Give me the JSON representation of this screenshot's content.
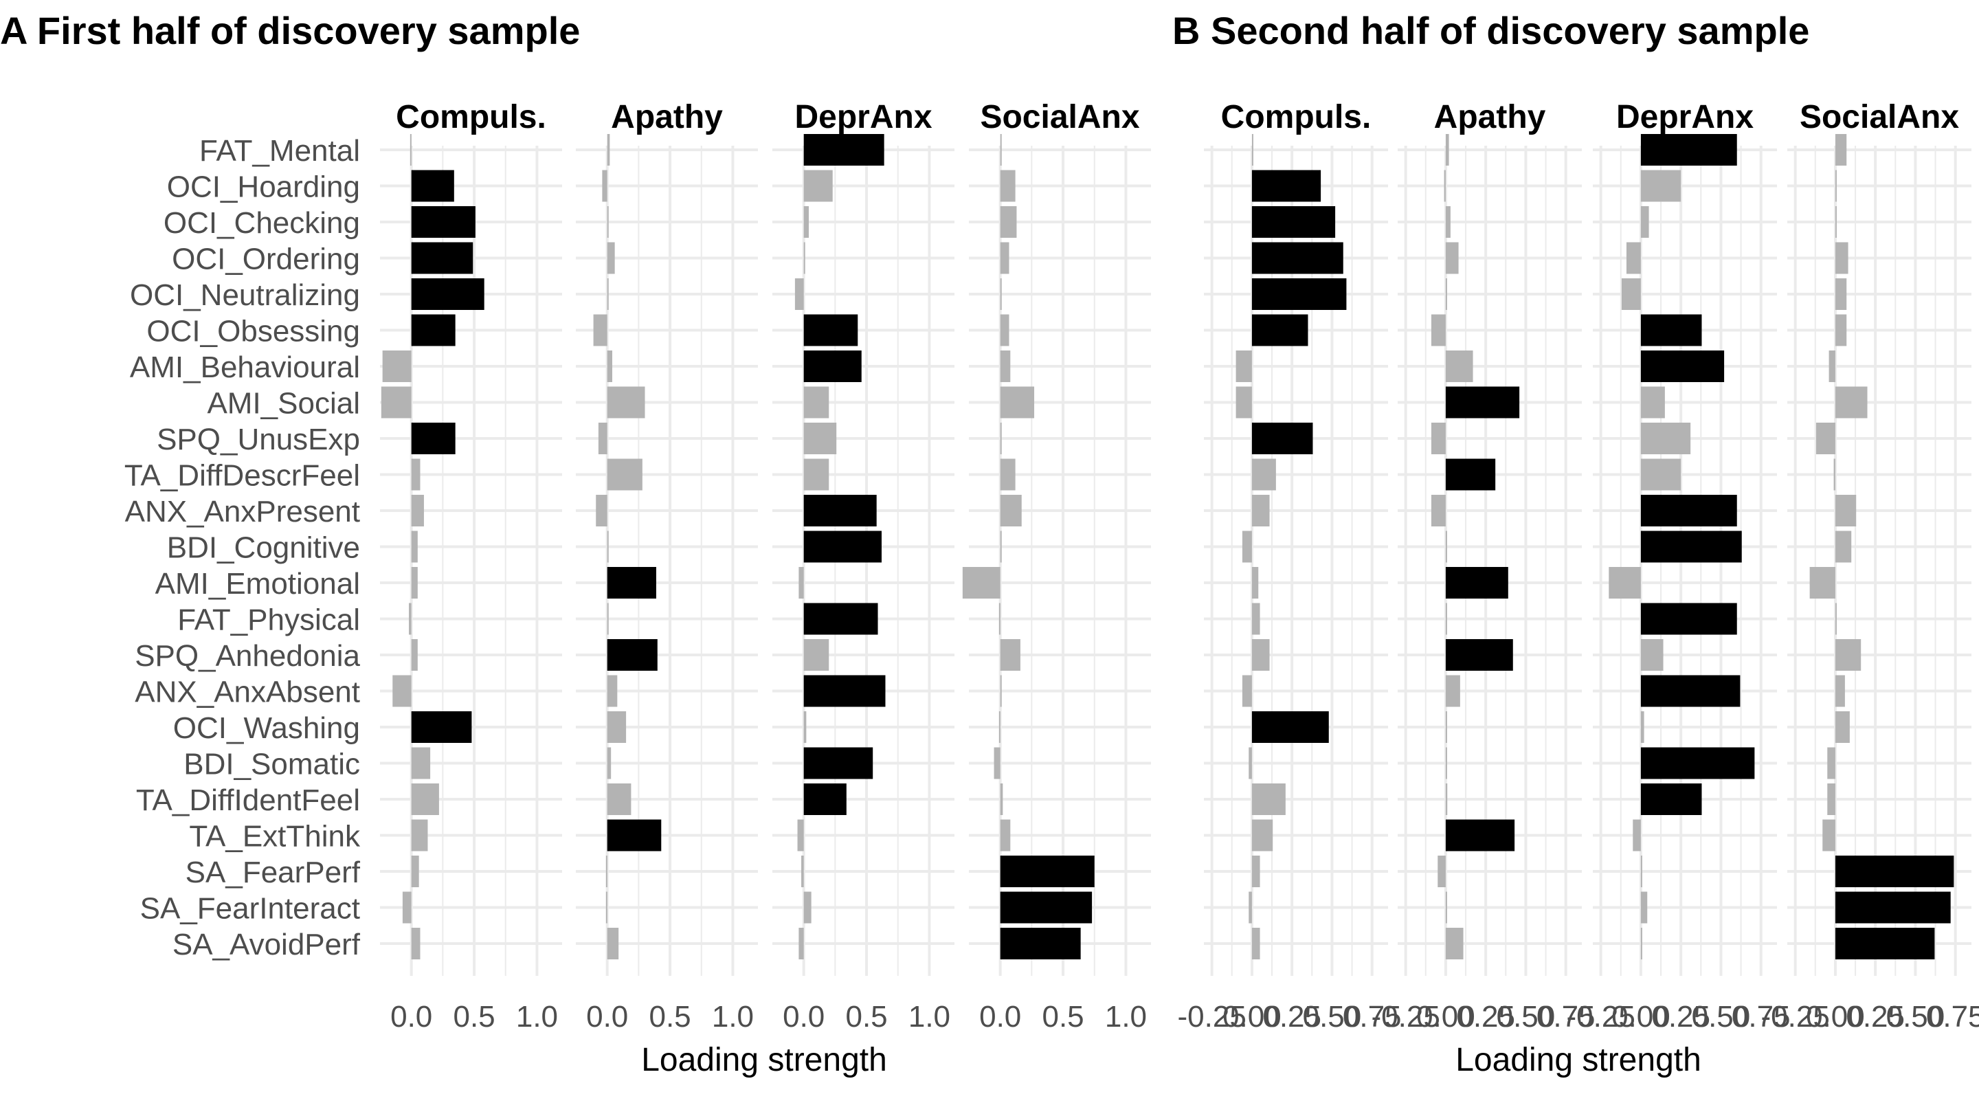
{
  "colors": {
    "strong": "#000000",
    "weak": "#b3b3b3",
    "grid": "#ebebeb",
    "text": "#4d4d4d"
  },
  "chart_data": {
    "type": "bar",
    "orientation": "horizontal",
    "grid": true,
    "threshold_note": "black bars = strong loadings, grey bars = weak loadings",
    "items": [
      "FAT_Mental",
      "OCI_Hoarding",
      "OCI_Checking",
      "OCI_Ordering",
      "OCI_Neutralizing",
      "OCI_Obsessing",
      "AMI_Behavioural",
      "AMI_Social",
      "SPQ_UnusExp",
      "TA_DiffDescrFeel",
      "ANX_AnxPresent",
      "BDI_Cognitive",
      "AMI_Emotional",
      "FAT_Physical",
      "SPQ_Anhedonia",
      "ANX_AnxAbsent",
      "OCI_Washing",
      "BDI_Somatic",
      "TA_DiffIdentFeel",
      "TA_ExtThink",
      "SA_FearPerf",
      "SA_FearInteract",
      "SA_AvoidPerf"
    ],
    "panels": [
      {
        "title": "A First half of discovery sample",
        "xlabel": "Loading strength",
        "facets": [
          {
            "name": "Compuls.",
            "xlim": [
              -0.25,
              1.2
            ],
            "ticks": [
              "0.0",
              "0.5",
              "1.0"
            ],
            "tick_values": [
              0,
              0.5,
              1.0
            ],
            "values": [
              -0.01,
              0.34,
              0.51,
              0.49,
              0.58,
              0.35,
              -0.23,
              -0.24,
              0.35,
              0.07,
              0.1,
              0.05,
              0.05,
              -0.02,
              0.05,
              -0.15,
              0.48,
              0.15,
              0.22,
              0.13,
              0.06,
              -0.07,
              0.07
            ],
            "strong": [
              false,
              true,
              true,
              true,
              true,
              true,
              false,
              false,
              true,
              false,
              false,
              false,
              false,
              false,
              false,
              false,
              true,
              false,
              false,
              false,
              false,
              false,
              false
            ]
          },
          {
            "name": "Apathy",
            "xlim": [
              -0.25,
              1.2
            ],
            "ticks": [
              "0.0",
              "0.5",
              "1.0"
            ],
            "tick_values": [
              0,
              0.5,
              1.0
            ],
            "values": [
              0.02,
              -0.04,
              0.0,
              0.06,
              0.0,
              -0.11,
              0.04,
              0.3,
              -0.07,
              0.28,
              -0.09,
              0.0,
              0.39,
              0.0,
              0.4,
              0.08,
              0.15,
              0.03,
              0.19,
              0.43,
              -0.01,
              -0.01,
              0.09
            ],
            "strong": [
              false,
              false,
              false,
              false,
              false,
              false,
              false,
              false,
              false,
              false,
              false,
              false,
              true,
              false,
              true,
              false,
              false,
              false,
              false,
              true,
              false,
              false,
              false
            ]
          },
          {
            "name": "DeprAnx",
            "xlim": [
              -0.25,
              1.2
            ],
            "ticks": [
              "0.0",
              "0.5",
              "1.0"
            ],
            "tick_values": [
              0,
              0.5,
              1.0
            ],
            "values": [
              0.64,
              0.23,
              0.04,
              0.0,
              -0.07,
              0.43,
              0.46,
              0.2,
              0.26,
              0.2,
              0.58,
              0.62,
              -0.04,
              0.59,
              0.2,
              0.65,
              0.02,
              0.55,
              0.34,
              -0.05,
              -0.02,
              0.06,
              -0.04
            ],
            "strong": [
              true,
              false,
              false,
              false,
              false,
              true,
              true,
              false,
              false,
              false,
              true,
              true,
              false,
              true,
              false,
              true,
              false,
              true,
              true,
              false,
              false,
              false,
              false
            ]
          },
          {
            "name": "SocialAnx",
            "xlim": [
              -0.25,
              1.2
            ],
            "ticks": [
              "0.0",
              "0.5",
              "1.0"
            ],
            "tick_values": [
              0,
              0.5,
              1.0
            ],
            "values": [
              0.0,
              0.12,
              0.13,
              0.07,
              0.0,
              0.07,
              0.08,
              0.27,
              0.0,
              0.12,
              0.17,
              0.01,
              -0.3,
              -0.01,
              0.16,
              0.0,
              -0.01,
              -0.05,
              0.02,
              0.08,
              0.75,
              0.73,
              0.64
            ],
            "strong": [
              false,
              false,
              false,
              false,
              false,
              false,
              false,
              false,
              false,
              false,
              false,
              false,
              false,
              false,
              false,
              false,
              false,
              false,
              false,
              false,
              true,
              true,
              true
            ]
          }
        ]
      },
      {
        "title": "B Second half of discovery sample",
        "xlabel": "Loading strength",
        "facets": [
          {
            "name": "Compuls.",
            "xlim": [
              -0.3,
              0.85
            ],
            "ticks": [
              "-0.25",
              "0.00",
              "0.25",
              "0.50",
              "0.75"
            ],
            "tick_values": [
              -0.25,
              0,
              0.25,
              0.5,
              0.75
            ],
            "values": [
              0.0,
              0.43,
              0.52,
              0.57,
              0.59,
              0.35,
              -0.1,
              -0.1,
              0.38,
              0.15,
              0.11,
              -0.06,
              0.04,
              0.05,
              0.11,
              -0.06,
              0.48,
              -0.02,
              0.21,
              0.13,
              0.05,
              -0.02,
              0.05
            ],
            "strong": [
              false,
              true,
              true,
              true,
              true,
              true,
              false,
              false,
              true,
              false,
              false,
              false,
              false,
              false,
              false,
              false,
              true,
              false,
              false,
              false,
              false,
              false,
              false
            ]
          },
          {
            "name": "Apathy",
            "xlim": [
              -0.3,
              0.85
            ],
            "ticks": [
              "-0.25",
              "0.00",
              "0.25",
              "0.50",
              "0.75"
            ],
            "tick_values": [
              -0.25,
              0,
              0.25,
              0.5,
              0.75
            ],
            "values": [
              0.02,
              -0.01,
              0.03,
              0.08,
              0.0,
              -0.09,
              0.17,
              0.46,
              -0.09,
              0.31,
              -0.09,
              0.0,
              0.39,
              0.0,
              0.42,
              0.09,
              0.0,
              0.0,
              0.01,
              0.43,
              -0.05,
              0.0,
              0.11
            ],
            "strong": [
              false,
              false,
              false,
              false,
              false,
              false,
              false,
              true,
              false,
              true,
              false,
              false,
              true,
              false,
              true,
              false,
              false,
              false,
              false,
              true,
              false,
              false,
              false
            ]
          },
          {
            "name": "DeprAnx",
            "xlim": [
              -0.3,
              0.85
            ],
            "ticks": [
              "-0.25",
              "0.00",
              "0.25",
              "0.50",
              "0.75"
            ],
            "tick_values": [
              -0.25,
              0,
              0.25,
              0.5,
              0.75
            ],
            "values": [
              0.6,
              0.25,
              0.05,
              -0.09,
              -0.12,
              0.38,
              0.52,
              0.15,
              0.31,
              0.25,
              0.6,
              0.63,
              -0.2,
              0.6,
              0.14,
              0.62,
              0.02,
              0.71,
              0.38,
              -0.05,
              0.0,
              0.04,
              0.0
            ],
            "strong": [
              true,
              false,
              false,
              false,
              false,
              true,
              true,
              false,
              false,
              false,
              true,
              true,
              false,
              true,
              false,
              true,
              false,
              true,
              true,
              false,
              false,
              false,
              false
            ]
          },
          {
            "name": "SocialAnx",
            "xlim": [
              -0.3,
              0.85
            ],
            "ticks": [
              "-0.25",
              "0.00",
              "0.25",
              "0.50",
              "0.75"
            ],
            "tick_values": [
              -0.25,
              0,
              0.25,
              0.5,
              0.75
            ],
            "values": [
              0.07,
              0.0,
              0.0,
              0.08,
              0.07,
              0.07,
              -0.04,
              0.2,
              -0.12,
              -0.01,
              0.13,
              0.1,
              -0.16,
              0.0,
              0.16,
              0.06,
              0.09,
              -0.05,
              -0.05,
              -0.08,
              0.74,
              0.72,
              0.62
            ],
            "strong": [
              false,
              false,
              false,
              false,
              false,
              false,
              false,
              false,
              false,
              false,
              false,
              false,
              false,
              false,
              false,
              false,
              false,
              false,
              false,
              false,
              true,
              true,
              true
            ]
          }
        ]
      }
    ]
  }
}
